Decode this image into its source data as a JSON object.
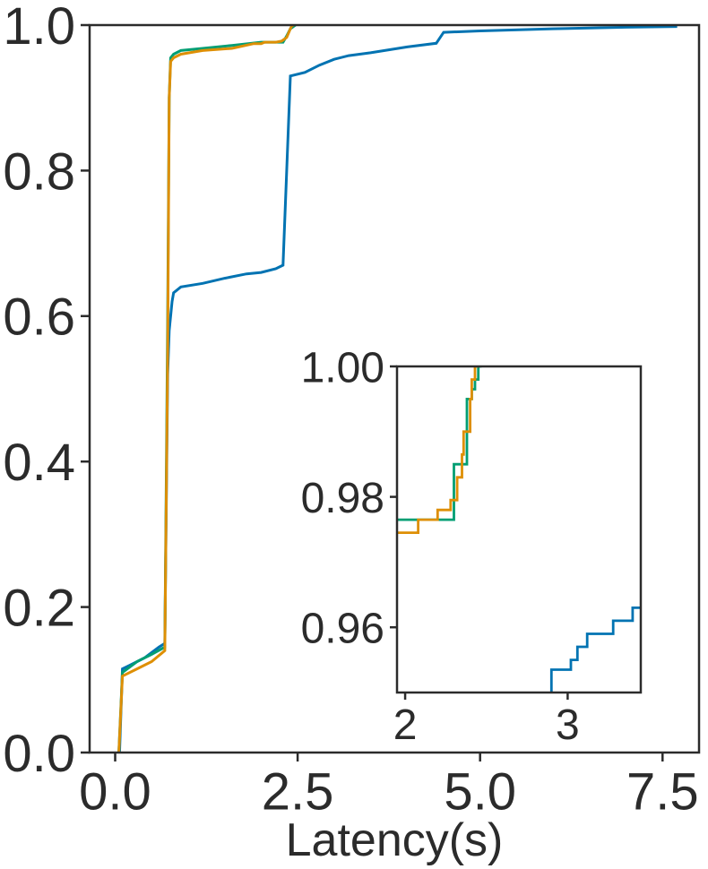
{
  "chart_data": [
    {
      "type": "line",
      "title": "",
      "xlabel": "Latency(s)",
      "ylabel": "",
      "xlim": [
        -0.35,
        8.0
      ],
      "ylim": [
        0.0,
        1.0
      ],
      "x_ticks": [
        0.0,
        2.5,
        5.0,
        7.5
      ],
      "x_tick_labels": [
        "0.0",
        "2.5",
        "5.0",
        "7.5"
      ],
      "y_ticks": [
        0.0,
        0.2,
        0.4,
        0.6,
        0.8,
        1.0
      ],
      "y_tick_labels": [
        "0.0",
        "0.2",
        "0.4",
        "0.6",
        "0.8",
        "1.0"
      ],
      "grid": false,
      "legend": "none",
      "series": [
        {
          "color": "#0173b2",
          "x": [
            0.05,
            0.06,
            0.1,
            0.2,
            0.4,
            0.6,
            0.68,
            0.72,
            0.74,
            0.78,
            0.8,
            0.9,
            1.2,
            1.5,
            1.8,
            2.0,
            2.2,
            2.3,
            2.35,
            2.4,
            2.6,
            2.8,
            3.0,
            3.2,
            3.5,
            4.0,
            4.4,
            4.5,
            5.0,
            6.0,
            7.0,
            7.7
          ],
          "y": [
            0.0,
            0.0,
            0.115,
            0.12,
            0.13,
            0.145,
            0.15,
            0.52,
            0.58,
            0.62,
            0.632,
            0.64,
            0.645,
            0.652,
            0.658,
            0.66,
            0.665,
            0.67,
            0.8,
            0.93,
            0.935,
            0.945,
            0.953,
            0.958,
            0.962,
            0.97,
            0.975,
            0.99,
            0.992,
            0.995,
            0.997,
            0.998
          ]
        },
        {
          "color": "#029e73",
          "x": [
            0.05,
            0.1,
            0.3,
            0.5,
            0.68,
            0.72,
            0.74,
            0.76,
            0.8,
            0.9,
            1.2,
            1.6,
            2.0,
            2.3,
            2.35,
            2.4,
            2.45,
            2.47,
            2.48
          ],
          "y": [
            0.0,
            0.11,
            0.125,
            0.135,
            0.145,
            0.6,
            0.9,
            0.955,
            0.96,
            0.965,
            0.968,
            0.972,
            0.9765,
            0.9765,
            0.985,
            0.995,
            0.9985,
            1.0,
            1.0
          ]
        },
        {
          "color": "#de8f05",
          "x": [
            0.05,
            0.1,
            0.3,
            0.5,
            0.68,
            0.72,
            0.74,
            0.76,
            0.8,
            0.9,
            1.2,
            1.6,
            1.9,
            2.0,
            2.05,
            2.2,
            2.28,
            2.35,
            2.4,
            2.42,
            2.45
          ],
          "y": [
            0.0,
            0.105,
            0.115,
            0.125,
            0.14,
            0.55,
            0.9,
            0.95,
            0.955,
            0.96,
            0.965,
            0.968,
            0.9745,
            0.9745,
            0.9765,
            0.9765,
            0.978,
            0.983,
            0.995,
            0.999,
            1.0
          ]
        }
      ]
    },
    {
      "type": "line",
      "title": "",
      "xlabel": "",
      "ylabel": "",
      "xlim": [
        1.95,
        3.45
      ],
      "ylim": [
        0.95,
        1.0
      ],
      "x_ticks": [
        2,
        3
      ],
      "x_tick_labels": [
        "2",
        "3"
      ],
      "y_ticks": [
        0.96,
        0.98,
        1.0
      ],
      "y_tick_labels": [
        "0.96",
        "0.98",
        "1.00"
      ],
      "grid": false,
      "legend": "none",
      "series": [
        {
          "color": "#0173b2",
          "x": [
            2.9,
            2.9,
            2.92,
            2.92,
            3.02,
            3.02,
            3.06,
            3.06,
            3.12,
            3.12,
            3.28,
            3.28,
            3.4,
            3.4,
            3.45
          ],
          "y": [
            0.95,
            0.9535,
            0.9535,
            0.9535,
            0.9535,
            0.955,
            0.955,
            0.957,
            0.957,
            0.959,
            0.959,
            0.961,
            0.961,
            0.963,
            0.963
          ]
        },
        {
          "color": "#029e73",
          "x": [
            1.95,
            2.3,
            2.3,
            2.38,
            2.38,
            2.41,
            2.41,
            2.43,
            2.43,
            2.45,
            2.45,
            2.47
          ],
          "y": [
            0.9765,
            0.9765,
            0.985,
            0.985,
            0.995,
            0.995,
            0.9965,
            0.9965,
            0.998,
            0.998,
            1.0,
            1.0
          ]
        },
        {
          "color": "#de8f05",
          "x": [
            1.95,
            2.08,
            2.08,
            2.2,
            2.2,
            2.28,
            2.28,
            2.32,
            2.32,
            2.35,
            2.35,
            2.36,
            2.36,
            2.4,
            2.4,
            2.41,
            2.41,
            2.43,
            2.43,
            2.45
          ],
          "y": [
            0.9745,
            0.9745,
            0.9765,
            0.9765,
            0.978,
            0.978,
            0.9795,
            0.9795,
            0.983,
            0.983,
            0.9865,
            0.9865,
            0.99,
            0.99,
            0.995,
            0.995,
            0.998,
            0.998,
            1.0,
            1.0
          ]
        }
      ]
    }
  ]
}
